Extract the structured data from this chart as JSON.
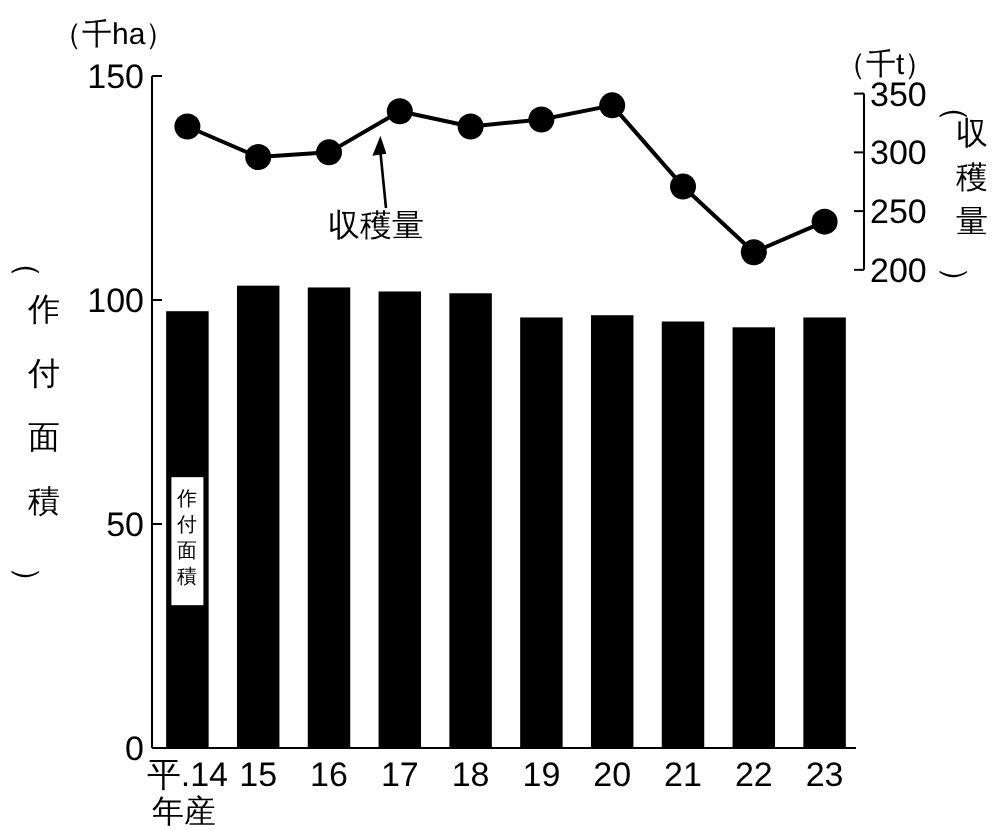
{
  "chart_data": {
    "type": "bar",
    "ylabel": "（作付面積）",
    "y2label": "（収穫量）",
    "xlabel": "年産",
    "categories": [
      "平.14",
      "15",
      "16",
      "17",
      "18",
      "19",
      "20",
      "21",
      "22",
      "23"
    ],
    "series": [
      {
        "name": "作付面積",
        "color": "#000000",
        "values": [
          97.5,
          103.2,
          102.8,
          101.9,
          101.5,
          96.1,
          96.6,
          95.2,
          93.9,
          96.1
        ]
      },
      {
        "name": "収穫量",
        "type": "line",
        "axis": "y2",
        "color": "#000000",
        "marker": "circle",
        "values": [
          322,
          296,
          300,
          335,
          322,
          328,
          340,
          271,
          215,
          241
        ]
      }
    ],
    "ylim": [
      0,
      150
    ],
    "yticks": [
      0,
      50,
      100,
      150
    ],
    "y2lim": [
      -207,
      365
    ],
    "y2ticks": [
      200,
      250,
      300,
      350
    ],
    "annotations": [
      "（千ha）",
      "（千t）"
    ],
    "grid": false
  }
}
